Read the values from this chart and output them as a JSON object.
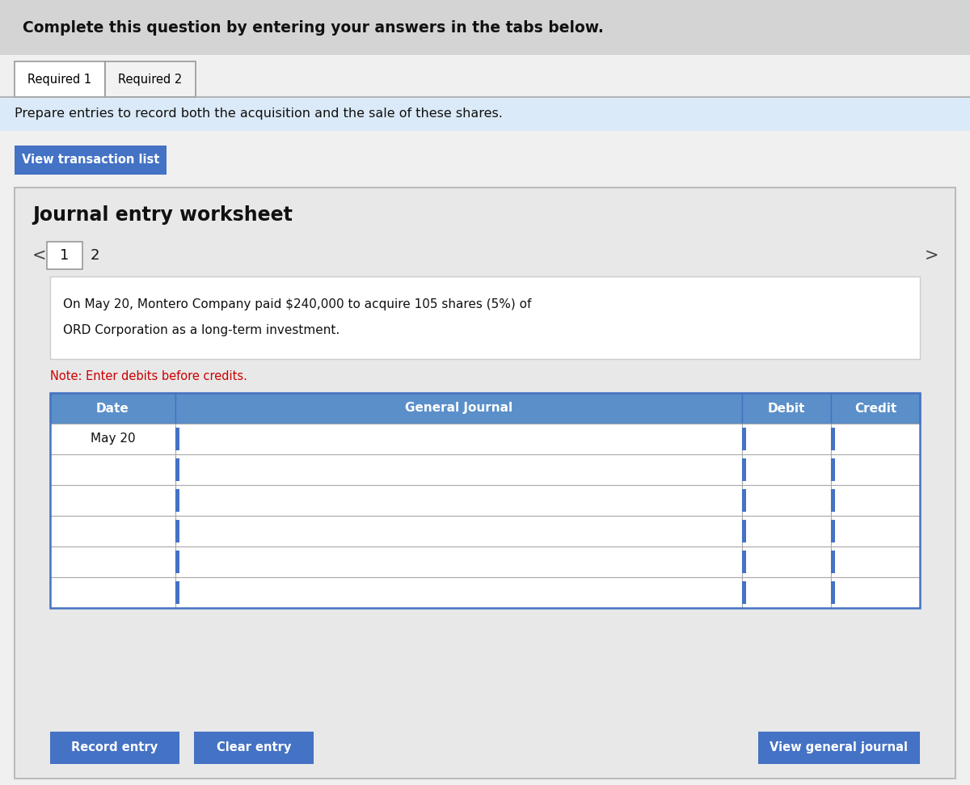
{
  "bg_color": "#f0f0f0",
  "header_bg": "#d4d4d4",
  "header_text": "Complete this question by entering your answers in the tabs below.",
  "tab1_label": "Required 1",
  "tab2_label": "Required 2",
  "instruction_bg": "#dbeaf8",
  "instruction_text": "Prepare entries to record both the acquisition and the sale of these shares.",
  "btn_color": "#4472c4",
  "view_transaction_btn": "View transaction list",
  "worksheet_bg": "#e8e8e8",
  "worksheet_title": "Journal entry worksheet",
  "nav_left": "<",
  "nav_right": ">",
  "page_num": "1",
  "page2_num": "2",
  "description_text_line1": "On May 20, Montero Company paid $240,000 to acquire 105 shares (5%) of",
  "description_text_line2": "ORD Corporation as a long-term investment.",
  "note_text": "Note: Enter debits before credits.",
  "note_color": "#cc0000",
  "table_header_bg": "#5b8fc9",
  "col_date": "Date",
  "col_journal": "General Journal",
  "col_debit": "Debit",
  "col_credit": "Credit",
  "date_entry": "May 20",
  "num_data_rows": 6,
  "record_entry_btn": "Record entry",
  "clear_entry_btn": "Clear entry",
  "view_journal_btn": "View general journal",
  "table_line_color": "#4472c4",
  "outer_border": "#999999"
}
